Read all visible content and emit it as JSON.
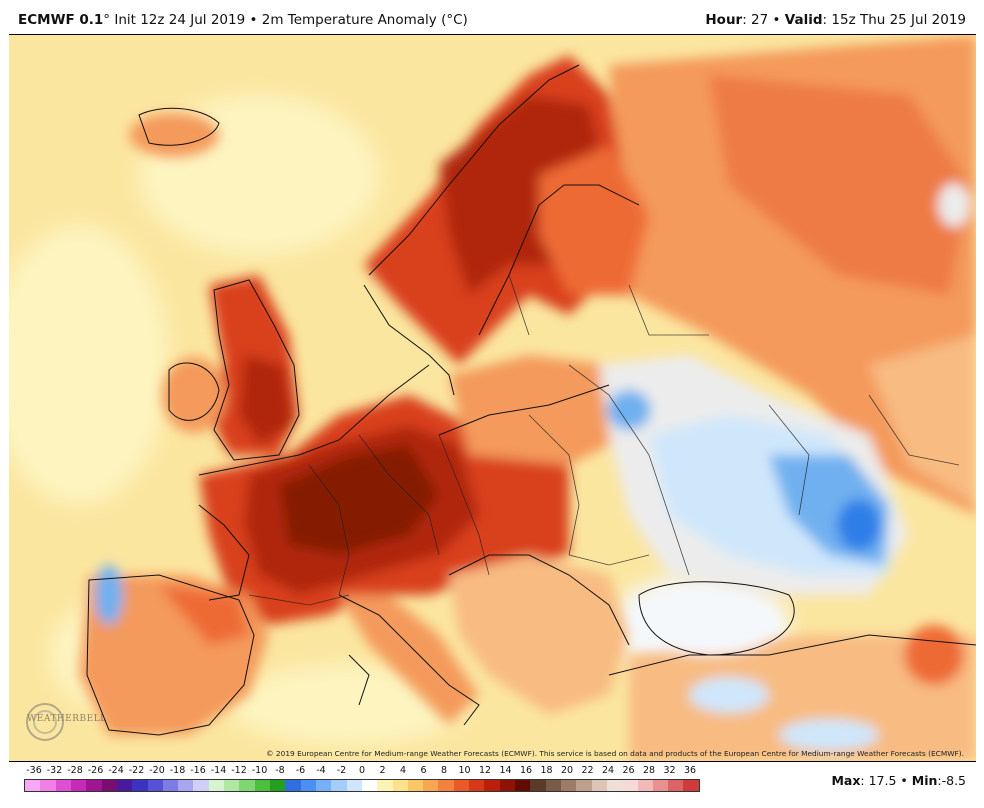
{
  "header": {
    "model": "ECMWF 0.1",
    "degree": "°",
    "init": " Init 12z 24 Jul 2019",
    "sep": " • ",
    "variable": "2m Temperature Anomaly (°C)",
    "hour_label": "Hour",
    "hour_value": ": 27",
    "sep2": " • ",
    "valid_label": "Valid",
    "valid_value": ": 15z Thu 25 Jul 2019"
  },
  "map": {
    "copyright": "© 2019 European Centre for Medium-range Weather Forecasts (ECMWF). This service is based on data and products of the European Centre for Medium-range Weather Forecasts (ECMWF).",
    "logo": "WEATHERBELL",
    "colors": {
      "sea": "#fbe6a0",
      "pale": "#fdf4c0",
      "light_orange": "#f8bb82",
      "orange": "#f49a5c",
      "red_orange": "#ee6a36",
      "red": "#d9411c",
      "dark_red": "#b02708",
      "darkest": "#851a04",
      "neutral": "#ececec",
      "light_blue": "#cfe7fb",
      "blue": "#6fb0f0",
      "deep_blue": "#2f7ee8"
    }
  },
  "colorbar": {
    "ticks": [
      "-36",
      "-32",
      "-28",
      "-26",
      "-24",
      "-22",
      "-20",
      "-18",
      "-16",
      "-14",
      "-12",
      "-10",
      "-8",
      "-6",
      "-4",
      "-2",
      "0",
      "2",
      "4",
      "6",
      "8",
      "10",
      "12",
      "14",
      "16",
      "18",
      "20",
      "22",
      "24",
      "26",
      "28",
      "32",
      "36"
    ],
    "colors": [
      "#f9a8f3",
      "#f07fe7",
      "#df4fd3",
      "#c52bb8",
      "#9f1593",
      "#7a0d72",
      "#4a1a9e",
      "#3b32c2",
      "#5552d6",
      "#7d7be5",
      "#a8a6ef",
      "#cfcff7",
      "#d8f3cf",
      "#b0e8a3",
      "#7fd772",
      "#4cbf3f",
      "#23a01e",
      "#2f6fe0",
      "#4b8ff0",
      "#76b0f6",
      "#a4cdf9",
      "#cfe5fb",
      "#ffffff",
      "#fdf3b4",
      "#fde28a",
      "#fbc766",
      "#f8a652",
      "#f3823e",
      "#ea5a28",
      "#d73818",
      "#b9200a",
      "#8f1205",
      "#630a03",
      "#5b3a2a",
      "#7a5a48",
      "#9c7b69",
      "#bf9f8e",
      "#dcc4b6",
      "#efe0d6",
      "#f6dada",
      "#f1b9b9",
      "#e99090",
      "#dd6464",
      "#cf3a3a"
    ],
    "max_label": "Max",
    "max_value": ": 17.5",
    "sep": " • ",
    "min_label": "Min",
    "min_value": ":-8.5"
  }
}
